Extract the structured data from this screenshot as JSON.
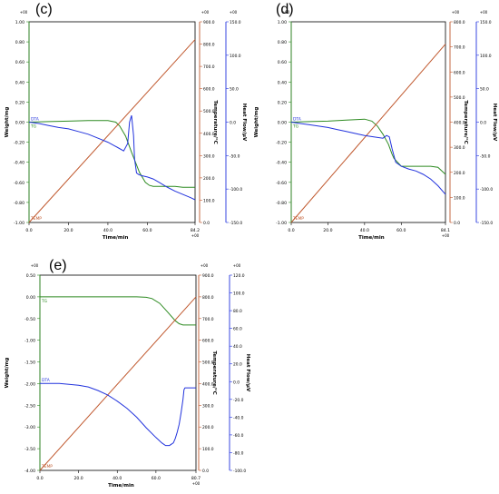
{
  "colors": {
    "weight": "#2e8b22",
    "temperature": "#c0582e",
    "heatflow": "#2233dd",
    "frame": "#000000"
  },
  "chart_data": [
    {
      "type": "line",
      "panel_label": "(c)",
      "xlabel": "Time/min",
      "y1label": "Weight/mg",
      "y2label": "Temperature/°C",
      "y3label": "Heat Flow/μV",
      "x_ticks": [
        "0.0",
        "20.0",
        "40.0",
        "60.0",
        "84.2"
      ],
      "x_unit": "+00",
      "y1_ticks": [
        "1.00",
        "0.80",
        "0.60",
        "0.40",
        "0.20",
        "0.00",
        "-0.20",
        "-0.40",
        "-0.60",
        "-0.80",
        "-1.00"
      ],
      "y1_unit": "+00",
      "y2_ticks": [
        "900.0",
        "800.0",
        "700.0",
        "600.0",
        "500.0",
        "400.0",
        "300.0",
        "200.0",
        "100.0",
        "0.0"
      ],
      "y2_unit": "+00",
      "y3_ticks": [
        "150.0",
        "100.0",
        "50.0",
        "0.0",
        "-50.0",
        "-100.0",
        "-150.0"
      ],
      "y3_unit": "+00",
      "curve_labels": [
        "DTA",
        "TG",
        "TEMP"
      ],
      "xlim": [
        0,
        84.2
      ],
      "y1lim": [
        -1.0,
        1.0
      ],
      "y2lim": [
        0,
        900
      ],
      "y3lim": [
        -150,
        150
      ],
      "series": [
        {
          "name": "TG",
          "axis": "y1",
          "x": [
            0,
            10,
            20,
            30,
            40,
            44,
            46,
            49,
            52,
            56,
            59,
            61,
            63,
            66,
            70,
            74,
            78,
            82,
            84.2
          ],
          "y": [
            0.0,
            0.005,
            0.01,
            0.015,
            0.015,
            0.0,
            -0.04,
            -0.14,
            -0.3,
            -0.5,
            -0.6,
            -0.63,
            -0.64,
            -0.64,
            -0.64,
            -0.64,
            -0.65,
            -0.65,
            -0.65
          ]
        },
        {
          "name": "TEMP",
          "axis": "y2",
          "x": [
            0,
            84.2
          ],
          "y": [
            0,
            820
          ]
        },
        {
          "name": "DTA",
          "axis": "y3",
          "x": [
            0,
            5,
            10,
            15,
            20,
            25,
            30,
            35,
            40,
            45,
            48,
            50,
            51,
            52,
            53,
            53.5,
            54.5,
            55.5,
            57,
            60,
            63,
            66,
            70,
            74,
            78,
            82,
            84.2
          ],
          "y": [
            0,
            -2,
            -5,
            -8,
            -10,
            -14,
            -18,
            -24,
            -30,
            -38,
            -43,
            -32,
            0,
            10,
            -20,
            -55,
            -76,
            -78,
            -80,
            -82,
            -85,
            -90,
            -97,
            -103,
            -108,
            -113,
            -116
          ]
        }
      ]
    },
    {
      "type": "line",
      "panel_label": "(d)",
      "xlabel": "Time/min",
      "y1label": "Weight/mg",
      "y2label": "Temperature/°C",
      "y3label": "Heat Flow/μV",
      "x_ticks": [
        "0.0",
        "20.0",
        "40.0",
        "60.0",
        "84.1"
      ],
      "x_unit": "+00",
      "y1_ticks": [
        "1.00",
        "0.80",
        "0.60",
        "0.40",
        "0.20",
        "0.00",
        "-0.20",
        "-0.40",
        "-0.60",
        "-0.80",
        "-1.00"
      ],
      "y1_unit": "+00",
      "y2_ticks": [
        "800.0",
        "700.0",
        "600.0",
        "500.0",
        "400.0",
        "300.0",
        "200.0",
        "100.0",
        "0.0"
      ],
      "y2_unit": "+00",
      "y3_ticks": [
        "150.0",
        "100.0",
        "50.0",
        "0.0",
        "-50.0",
        "-100.0",
        "-150.0"
      ],
      "y3_unit": "+00",
      "curve_labels": [
        "DTA",
        "TG",
        "TEMP"
      ],
      "xlim": [
        0,
        84.1
      ],
      "y1lim": [
        -1.0,
        1.0
      ],
      "y2lim": [
        0,
        900
      ],
      "y3lim": [
        -150,
        150
      ],
      "series": [
        {
          "name": "TG",
          "axis": "y1",
          "x": [
            0,
            10,
            20,
            30,
            40,
            44,
            47,
            50,
            53,
            55,
            56,
            58,
            60,
            64,
            70,
            76,
            80,
            84.1
          ],
          "y": [
            0.0,
            0.005,
            0.01,
            0.02,
            0.03,
            0.01,
            -0.04,
            -0.12,
            -0.22,
            -0.32,
            -0.36,
            -0.4,
            -0.44,
            -0.44,
            -0.44,
            -0.44,
            -0.45,
            -0.52
          ]
        },
        {
          "name": "TEMP",
          "axis": "y2",
          "x": [
            0,
            84.1
          ],
          "y": [
            0,
            800
          ]
        },
        {
          "name": "DTA",
          "axis": "y3",
          "x": [
            0,
            5,
            10,
            15,
            20,
            25,
            30,
            35,
            40,
            45,
            50,
            52,
            53.5,
            55,
            57,
            60,
            64,
            68,
            72,
            76,
            80,
            84.1
          ],
          "y": [
            0,
            -2,
            -4,
            -6,
            -8,
            -11,
            -14,
            -17,
            -20,
            -22,
            -24,
            -20,
            -22,
            -40,
            -60,
            -66,
            -70,
            -73,
            -78,
            -85,
            -95,
            -108
          ]
        }
      ]
    },
    {
      "type": "line",
      "panel_label": "(e)",
      "xlabel": "Time/min",
      "y1label": "Weight/mg",
      "y2label": "Temperature/°C",
      "y3label": "Heat Flow/μV",
      "x_ticks": [
        "0.0",
        "20.0",
        "40.0",
        "60.0",
        "80.7"
      ],
      "x_unit": "+00",
      "y1_ticks": [
        "0.50",
        "0.00",
        "-0.50",
        "-1.00",
        "-1.50",
        "-2.00",
        "-2.50",
        "-3.00",
        "-3.50",
        "-4.00"
      ],
      "y1_unit": "+00",
      "y2_ticks": [
        "900.0",
        "800.0",
        "700.0",
        "600.0",
        "500.0",
        "400.0",
        "300.0",
        "200.0",
        "100.0",
        "0.0"
      ],
      "y2_unit": "+00",
      "y3_ticks": [
        "120.0",
        "100.0",
        "80.0",
        "60.0",
        "40.0",
        "20.0",
        "0.0",
        "-20.0",
        "-40.0",
        "-60.0",
        "-80.0",
        "-100.0"
      ],
      "y3_unit": "+00",
      "curve_labels": [
        "DTA",
        "TG",
        "TEMP"
      ],
      "xlim": [
        0,
        80.7
      ],
      "y1lim": [
        -4.0,
        0.5
      ],
      "y2lim": [
        0,
        900
      ],
      "y3lim": [
        -100,
        120
      ],
      "series": [
        {
          "name": "TG",
          "axis": "y1",
          "x": [
            0,
            10,
            20,
            30,
            40,
            50,
            55,
            58,
            62,
            66,
            70,
            72,
            74,
            76,
            78,
            80.7
          ],
          "y": [
            0.0,
            0.0,
            0.0,
            0.0,
            0.0,
            0.0,
            -0.01,
            -0.04,
            -0.15,
            -0.35,
            -0.55,
            -0.62,
            -0.65,
            -0.65,
            -0.65,
            -0.65
          ]
        },
        {
          "name": "TEMP",
          "axis": "y2",
          "x": [
            0,
            80.7
          ],
          "y": [
            0,
            800
          ]
        },
        {
          "name": "DTA",
          "axis": "y3",
          "x": [
            0,
            5,
            10,
            15,
            20,
            25,
            30,
            35,
            40,
            45,
            50,
            55,
            60,
            63,
            65,
            67,
            69,
            70,
            71,
            72,
            73,
            74,
            74.5,
            75,
            80.7
          ],
          "y": [
            -2,
            -2,
            -2,
            -3,
            -4,
            -6,
            -10,
            -15,
            -22,
            -30,
            -40,
            -52,
            -63,
            -69,
            -72,
            -72,
            -69,
            -64,
            -57,
            -48,
            -35,
            -20,
            -9,
            -7,
            -7
          ]
        }
      ]
    }
  ]
}
